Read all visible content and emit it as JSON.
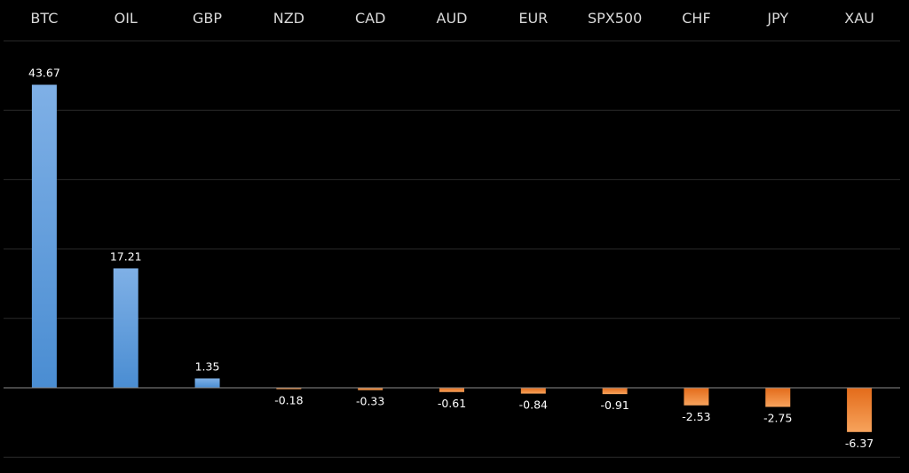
{
  "chart_data": {
    "type": "bar",
    "title": "",
    "xlabel": "",
    "ylabel": "",
    "categories": [
      "BTC",
      "OIL",
      "GBP",
      "NZD",
      "CAD",
      "AUD",
      "EUR",
      "SPX500",
      "CHF",
      "JPY",
      "XAU"
    ],
    "values": [
      43.67,
      17.21,
      1.35,
      -0.18,
      -0.33,
      -0.61,
      -0.84,
      -0.91,
      -2.53,
      -2.75,
      -6.37
    ],
    "value_labels": [
      "43.67",
      "17.21",
      "1.35",
      "-0.18",
      "-0.33",
      "-0.61",
      "-0.84",
      "-0.91",
      "-2.53",
      "-2.75",
      "-6.37"
    ],
    "ylim": [
      -10,
      50
    ],
    "y_grid_step": 10,
    "grid": true,
    "category_axis_position": "top",
    "legend": "none",
    "colors": {
      "background": "#000000",
      "positive_top": "#7fb0e6",
      "positive_bottom": "#4a8dd2",
      "negative_top": "#e36b1a",
      "negative_bottom": "#f7a35c",
      "gridline": "#2a2a2a",
      "zero_line": "#8c8c8c",
      "category_text": "#d9d9d9",
      "value_text": "#ffffff"
    }
  }
}
